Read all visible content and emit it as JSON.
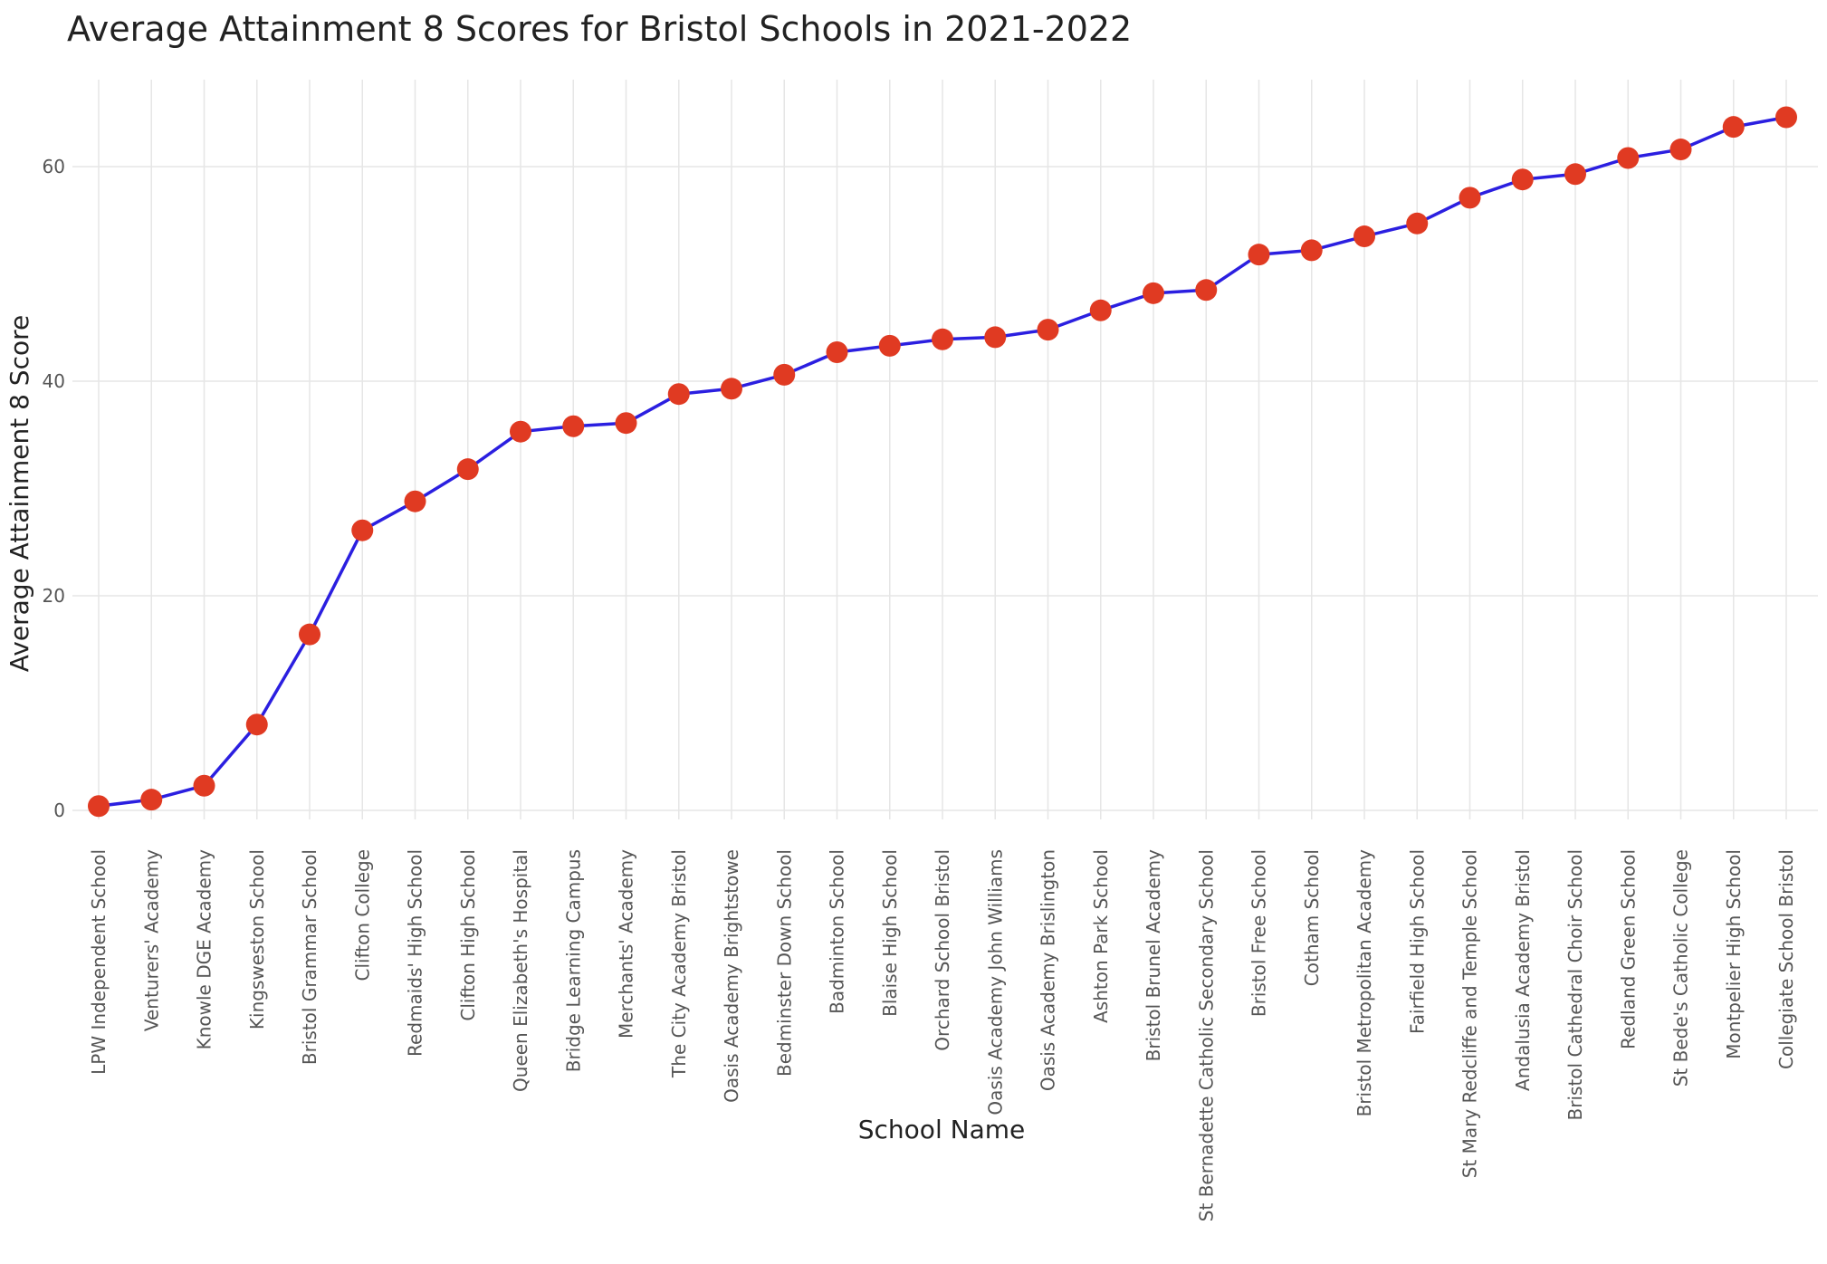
{
  "chart_data": {
    "type": "line",
    "title": "Average Attainment 8 Scores for Bristol Schools in 2021-2022",
    "xlabel": "School Name",
    "ylabel": "Average Attainment 8 Score",
    "ylim": [
      -1.5,
      68
    ],
    "yticks": [
      0,
      20,
      40,
      60
    ],
    "grid": true,
    "line_color": "#2b1fe0",
    "marker_color": "#e03a22",
    "categories": [
      "LPW Independent School",
      "Venturers' Academy",
      "Knowle DGE Academy",
      "Kingsweston School",
      "Bristol Grammar School",
      "Clifton College",
      "Redmaids' High School",
      "Clifton High School",
      "Queen Elizabeth's Hospital",
      "Bridge Learning Campus",
      "Merchants' Academy",
      "The City Academy Bristol",
      "Oasis Academy Brightstowe",
      "Bedminster Down School",
      "Badminton School",
      "Blaise High School",
      "Orchard School Bristol",
      "Oasis Academy John Williams",
      "Oasis Academy Brislington",
      "Ashton Park School",
      "Bristol Brunel Academy",
      "St Bernadette Catholic Secondary School",
      "Bristol Free School",
      "Cotham School",
      "Bristol Metropolitan Academy",
      "Fairfield High School",
      "St Mary Redcliffe and Temple School",
      "Andalusia Academy Bristol",
      "Bristol Cathedral Choir School",
      "Redland Green School",
      "St Bede's Catholic College",
      "Montpelier High School",
      "Collegiate School Bristol"
    ],
    "values": [
      0.4,
      1.0,
      2.3,
      8.0,
      16.4,
      26.1,
      28.8,
      31.8,
      35.3,
      35.8,
      36.1,
      38.8,
      39.3,
      40.6,
      42.7,
      43.3,
      43.9,
      44.1,
      44.8,
      46.6,
      48.2,
      48.5,
      51.8,
      52.2,
      53.5,
      54.7,
      57.1,
      58.8,
      59.3,
      60.8,
      61.6,
      63.7,
      64.6
    ]
  }
}
